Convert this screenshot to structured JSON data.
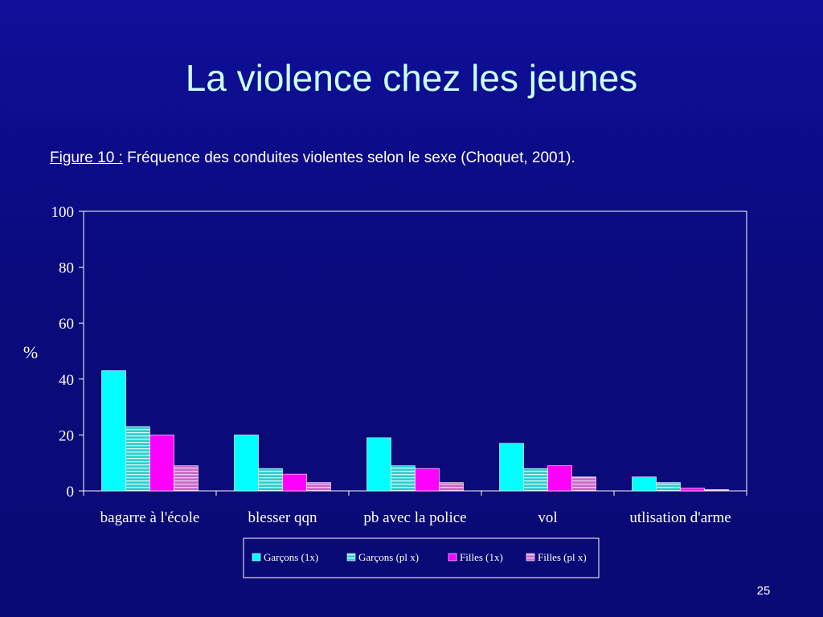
{
  "slide": {
    "title": "La violence chez les jeunes",
    "caption_ref": "Figure 10 :",
    "caption_text": " Fréquence des conduites violentes selon le sexe (Choquet, 2001).",
    "page_number": "25"
  },
  "colors": {
    "background": "#0a0a78",
    "title": "#ccffff",
    "garcons_1x": "#00ffff",
    "garcons_plx": "#33cccc",
    "filles_1x": "#ff00ff",
    "filles_plx": "#cc66cc"
  },
  "chart_data": {
    "type": "bar",
    "ylabel": "%",
    "ylim": [
      0,
      100
    ],
    "yticks": [
      "0",
      "20",
      "40",
      "60",
      "80",
      "100"
    ],
    "categories": [
      "bagarre à l'école",
      "blesser qqn",
      "pb avec la police",
      "vol",
      "utlisation d'arme"
    ],
    "series": [
      {
        "name": "Garçons (1x)",
        "values": [
          43,
          20,
          19,
          17,
          5
        ],
        "color": "#00ffff",
        "pattern": "solid"
      },
      {
        "name": "Garçons (pl x)",
        "values": [
          23,
          8,
          9,
          8,
          3
        ],
        "color": "#33cccc",
        "pattern": "striped"
      },
      {
        "name": "Filles (1x)",
        "values": [
          20,
          6,
          8,
          9,
          1
        ],
        "color": "#ff00ff",
        "pattern": "solid"
      },
      {
        "name": "Filles (pl x)",
        "values": [
          9,
          3,
          3,
          5,
          0.5
        ],
        "color": "#cc66cc",
        "pattern": "striped"
      }
    ],
    "grid": false,
    "legend_position": "bottom"
  }
}
